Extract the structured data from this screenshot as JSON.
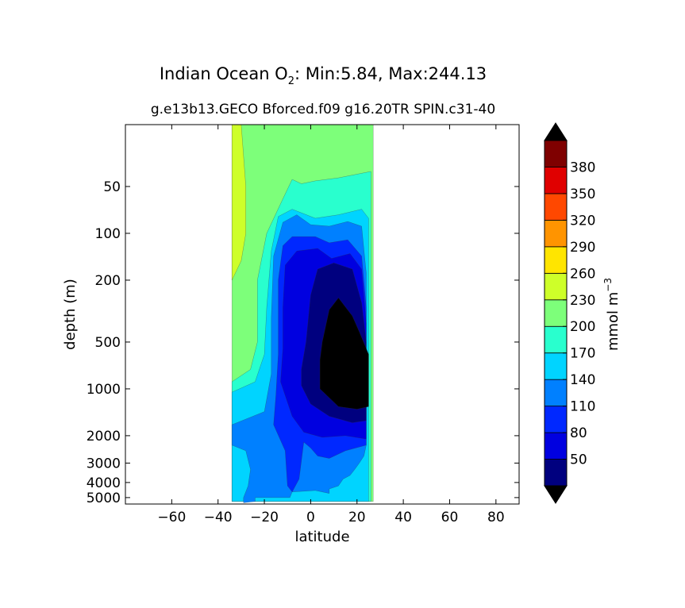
{
  "chart_data": {
    "type": "heatmap",
    "title_prefix": "Indian Ocean O",
    "title_sub": "2",
    "title_rest": ": Min:5.84, Max:244.13",
    "subtitle": "g.e13b13.GECO Bforced.f09 g16.20TR SPIN.c31-40",
    "xlabel": "latitude",
    "ylabel": "depth (m)",
    "xlim": [
      -80,
      90
    ],
    "ylim": [
      5500,
      20
    ],
    "yscale": "log",
    "x_ticks": [
      -60,
      -40,
      -20,
      0,
      20,
      40,
      60,
      80
    ],
    "x_tick_labels": [
      "−60",
      "−40",
      "−20",
      "0",
      "20",
      "40",
      "60",
      "80"
    ],
    "y_ticks": [
      50,
      100,
      200,
      500,
      1000,
      2000,
      3000,
      4000,
      5000
    ],
    "y_tick_labels": [
      "50",
      "100",
      "200",
      "500",
      "1000",
      "2000",
      "3000",
      "4000",
      "5000"
    ],
    "colorbar": {
      "label": "mmol m",
      "label_sup": "−3",
      "levels": [
        20,
        50,
        80,
        110,
        140,
        170,
        200,
        230,
        260,
        290,
        320,
        350,
        380,
        410
      ],
      "tick_values": [
        50,
        80,
        110,
        140,
        170,
        200,
        230,
        260,
        290,
        320,
        350,
        380
      ],
      "colors": [
        "#00007f",
        "#0000e0",
        "#0028ff",
        "#0080ff",
        "#00d4ff",
        "#29ffce",
        "#7dff7a",
        "#ceff29",
        "#ffe500",
        "#ff9400",
        "#ff4800",
        "#e00000",
        "#7f0000"
      ],
      "extend_low_color": "#000000",
      "extend_high_color": "#000000"
    },
    "fields": [
      {
        "level": "200-230",
        "color": "#7dff7a",
        "polygon": [
          [
            -34,
            20
          ],
          [
            27,
            20
          ],
          [
            27,
            5300
          ],
          [
            -34,
            5300
          ]
        ]
      },
      {
        "level": "230-260",
        "color": "#ceff29",
        "polygon": [
          [
            -34,
            20
          ],
          [
            -30,
            20
          ],
          [
            -28,
            50
          ],
          [
            -28,
            100
          ],
          [
            -30,
            150
          ],
          [
            -34,
            200
          ]
        ]
      },
      {
        "level": "170-200",
        "color": "#29ffce",
        "polygon": [
          [
            -34,
            900
          ],
          [
            -26,
            750
          ],
          [
            -23,
            500
          ],
          [
            -23,
            200
          ],
          [
            -19,
            100
          ],
          [
            -12,
            60
          ],
          [
            -8,
            45
          ],
          [
            -4,
            48
          ],
          [
            2,
            46
          ],
          [
            12,
            44
          ],
          [
            26,
            40
          ],
          [
            26,
            5300
          ],
          [
            -34,
            5300
          ]
        ]
      },
      {
        "level": "140-170",
        "color": "#00d4ff",
        "polygon": [
          [
            -34,
            1050
          ],
          [
            -24,
            900
          ],
          [
            -20,
            600
          ],
          [
            -19,
            300
          ],
          [
            -17,
            130
          ],
          [
            -14,
            78
          ],
          [
            -8,
            70
          ],
          [
            2,
            80
          ],
          [
            12,
            76
          ],
          [
            22,
            70
          ],
          [
            25,
            80
          ],
          [
            25,
            5300
          ],
          [
            -34,
            5300
          ]
        ]
      },
      {
        "level": "110-140",
        "color": "#0080ff",
        "polygon": [
          [
            -34,
            2300
          ],
          [
            -28,
            2500
          ],
          [
            -26,
            3300
          ],
          [
            -27,
            4200
          ],
          [
            -29,
            5000
          ],
          [
            -29,
            5400
          ],
          [
            -24,
            5300
          ],
          [
            -24,
            5000
          ],
          [
            -9,
            5000
          ],
          [
            -8,
            4600
          ],
          [
            2,
            4500
          ],
          [
            8,
            4700
          ],
          [
            8,
            4400
          ],
          [
            12,
            4200
          ],
          [
            14,
            3800
          ],
          [
            17,
            3600
          ],
          [
            19,
            3300
          ],
          [
            21,
            3000
          ],
          [
            23,
            2700
          ],
          [
            24,
            2300
          ],
          [
            24,
            180
          ],
          [
            22,
            90
          ],
          [
            16,
            84
          ],
          [
            8,
            90
          ],
          [
            0,
            88
          ],
          [
            -6,
            76
          ],
          [
            -12,
            85
          ],
          [
            -16,
            140
          ],
          [
            -17,
            350
          ],
          [
            -17,
            800
          ],
          [
            -20,
            1400
          ],
          [
            -34,
            1700
          ]
        ]
      },
      {
        "level": "80-110",
        "color": "#0028ff",
        "polygon": [
          [
            -16,
            1700
          ],
          [
            -11,
            2500
          ],
          [
            -10,
            4200
          ],
          [
            -8,
            4600
          ],
          [
            -5,
            3800
          ],
          [
            -3,
            2200
          ],
          [
            0,
            2400
          ],
          [
            3,
            2700
          ],
          [
            8,
            2800
          ],
          [
            15,
            2500
          ],
          [
            24,
            2300
          ],
          [
            24,
            300
          ],
          [
            22,
            140
          ],
          [
            16,
            110
          ],
          [
            8,
            115
          ],
          [
            2,
            105
          ],
          [
            -8,
            105
          ],
          [
            -12,
            120
          ],
          [
            -14,
            200
          ],
          [
            -14,
            600
          ],
          [
            -15,
            1100
          ]
        ]
      },
      {
        "level": "50-80",
        "color": "#0000e0",
        "polygon": [
          [
            -13,
            900
          ],
          [
            -8,
            1500
          ],
          [
            -3,
            1900
          ],
          [
            5,
            2050
          ],
          [
            15,
            2000
          ],
          [
            24,
            2100
          ],
          [
            24,
            380
          ],
          [
            22,
            170
          ],
          [
            17,
            135
          ],
          [
            9,
            145
          ],
          [
            3,
            125
          ],
          [
            -6,
            130
          ],
          [
            -11,
            160
          ],
          [
            -12,
            300
          ],
          [
            -12,
            550
          ]
        ]
      },
      {
        "level": "20-50",
        "color": "#00007f",
        "polygon": [
          [
            -4,
            950
          ],
          [
            0,
            1250
          ],
          [
            8,
            1500
          ],
          [
            18,
            1650
          ],
          [
            24,
            1600
          ],
          [
            24,
            500
          ],
          [
            22,
            280
          ],
          [
            18,
            170
          ],
          [
            10,
            155
          ],
          [
            3,
            170
          ],
          [
            0,
            250
          ],
          [
            -2,
            500
          ],
          [
            -4,
            750
          ]
        ]
      },
      {
        "level": "<20",
        "color": "#000000",
        "polygon": [
          [
            4,
            1000
          ],
          [
            12,
            1300
          ],
          [
            20,
            1350
          ],
          [
            25,
            1300
          ],
          [
            25,
            600
          ],
          [
            21,
            430
          ],
          [
            18,
            340
          ],
          [
            12,
            260
          ],
          [
            8,
            310
          ],
          [
            5,
            500
          ],
          [
            4,
            650
          ]
        ]
      }
    ]
  }
}
